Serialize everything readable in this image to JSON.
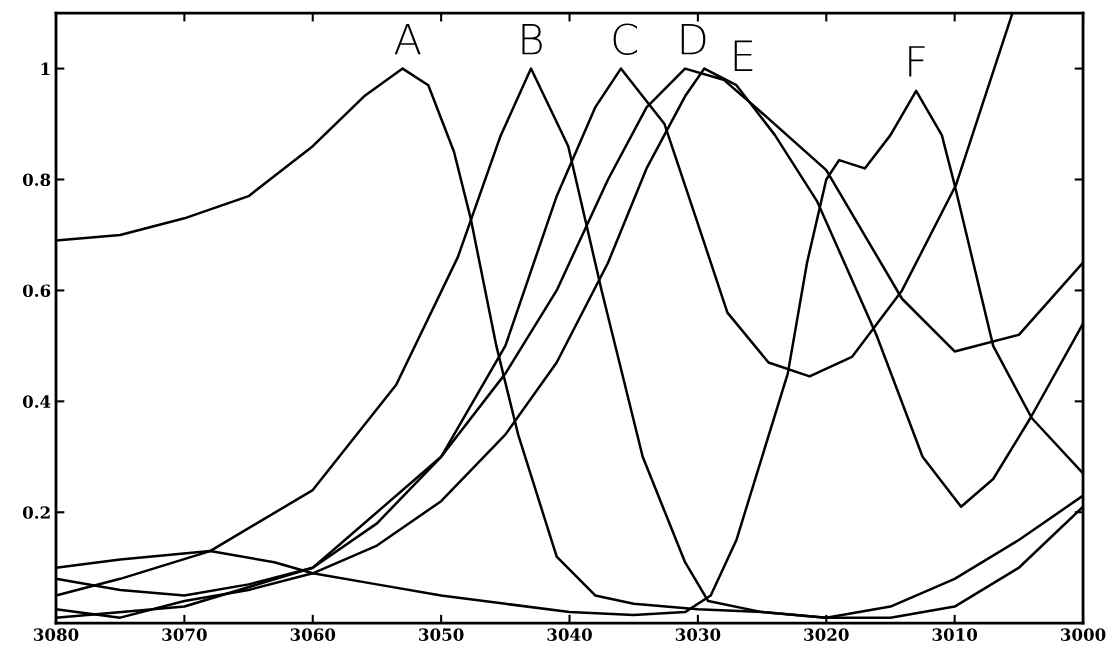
{
  "chart_data": {
    "type": "line",
    "xlim": [
      3080,
      3000
    ],
    "ylim": [
      0,
      1.1
    ],
    "xticks": [
      3080,
      3070,
      3060,
      3050,
      3040,
      3030,
      3020,
      3010,
      3000
    ],
    "yticks": [
      0.2,
      0.4,
      0.6,
      0.8,
      1
    ],
    "grid": false,
    "marker": "none",
    "line_style": "solid",
    "series": [
      {
        "color": "#000000",
        "x": [
          3080,
          3075,
          3070,
          3065,
          3060,
          3056,
          3053,
          3051,
          3049,
          3047.7,
          3045.7,
          3044,
          3041,
          3038,
          3035,
          3030,
          3025,
          3020,
          3015,
          3010,
          3005,
          3000
        ],
        "values": [
          0.69,
          0.7,
          0.73,
          0.77,
          0.86,
          0.95,
          1.0,
          0.97,
          0.85,
          0.73,
          0.5,
          0.34,
          0.12,
          0.05,
          0.035,
          0.025,
          0.02,
          0.01,
          0.03,
          0.08,
          0.15,
          0.23
        ]
      },
      {
        "color": "#000000",
        "x": [
          3080,
          3075,
          3068,
          3060,
          3053.5,
          3048.7,
          3045.4,
          3043,
          3040.1,
          3037.5,
          3034.3,
          3031,
          3029.2,
          3025,
          3020,
          3015,
          3010,
          3005,
          3000
        ],
        "values": [
          0.05,
          0.08,
          0.13,
          0.24,
          0.43,
          0.66,
          0.877,
          1.0,
          0.86,
          0.6,
          0.3,
          0.11,
          0.04,
          0.02,
          0.01,
          0.01,
          0.03,
          0.1,
          0.21
        ]
      },
      {
        "color": "#000000",
        "x": [
          3080,
          3070,
          3060,
          3050,
          3045,
          3041,
          3038,
          3036,
          3032.6,
          3030,
          3027.7,
          3024.5,
          3021.3,
          3018,
          3014.1,
          3009.9,
          3005.5
        ],
        "values": [
          0.01,
          0.03,
          0.1,
          0.3,
          0.5,
          0.77,
          0.93,
          1.0,
          0.9,
          0.72,
          0.56,
          0.47,
          0.445,
          0.48,
          0.6,
          0.79,
          1.1
        ]
      },
      {
        "color": "#000000",
        "x": [
          3080,
          3075,
          3070,
          3065,
          3060,
          3055,
          3050,
          3045,
          3041,
          3037,
          3034,
          3031,
          3028,
          3025,
          3020,
          3014.1,
          3010,
          3005,
          3000
        ],
        "values": [
          0.08,
          0.06,
          0.05,
          0.07,
          0.1,
          0.18,
          0.3,
          0.45,
          0.6,
          0.8,
          0.93,
          1.0,
          0.98,
          0.92,
          0.817,
          0.585,
          0.49,
          0.52,
          0.65
        ]
      },
      {
        "color": "#000000",
        "x": [
          3080,
          3075,
          3070,
          3065,
          3060,
          3055,
          3050,
          3045,
          3041,
          3037,
          3034,
          3031,
          3029.5,
          3027,
          3024,
          3020.7,
          3016.1,
          3012.5,
          3009.5,
          3007,
          3004.1,
          3000
        ],
        "values": [
          0.025,
          0.01,
          0.04,
          0.06,
          0.09,
          0.14,
          0.22,
          0.34,
          0.47,
          0.65,
          0.82,
          0.95,
          1.0,
          0.97,
          0.88,
          0.76,
          0.52,
          0.3,
          0.21,
          0.26,
          0.37,
          0.54
        ]
      },
      {
        "color": "#000000",
        "x": [
          3080,
          3075,
          3068,
          3063,
          3060,
          3055,
          3050,
          3045,
          3040,
          3035,
          3031,
          3029,
          3027,
          3025,
          3023,
          3021.5,
          3020,
          3019,
          3017,
          3015,
          3013,
          3011,
          3010,
          3007,
          3004,
          3000
        ],
        "values": [
          0.1,
          0.115,
          0.13,
          0.11,
          0.09,
          0.07,
          0.05,
          0.035,
          0.02,
          0.015,
          0.02,
          0.05,
          0.15,
          0.3,
          0.45,
          0.65,
          0.8,
          0.835,
          0.82,
          0.88,
          0.96,
          0.88,
          0.79,
          0.5,
          0.37,
          0.27
        ]
      }
    ],
    "annotations": [
      {
        "text": "A",
        "x": 3052.6,
        "y": 1.0
      },
      {
        "text": "B",
        "x": 3043,
        "y": 1.0
      },
      {
        "text": "C",
        "x": 3035.7,
        "y": 1.0
      },
      {
        "text": "D",
        "x": 3030.4,
        "y": 1.0
      },
      {
        "text": "E",
        "x": 3026.5,
        "y": 0.97
      },
      {
        "text": "F",
        "x": 3013,
        "y": 0.96
      }
    ]
  }
}
